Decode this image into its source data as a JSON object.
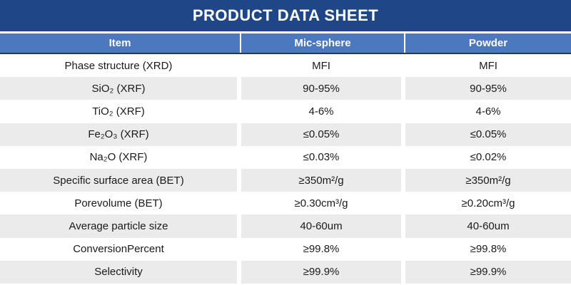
{
  "title": "PRODUCT DATA SHEET",
  "colors": {
    "banner_bg": "#1f4788",
    "header_bg": "#4c78c0",
    "header_border": "#1f3864",
    "row_alt_bg": "#ebebeb",
    "text": "#1a1a1a",
    "header_text": "#ffffff"
  },
  "table": {
    "columns": [
      {
        "label": "Item"
      },
      {
        "label": "Mic-sphere"
      },
      {
        "label": "Powder"
      }
    ],
    "rows": [
      {
        "item": "Phase structure (XRD)",
        "mic_sphere": "MFI",
        "powder": "MFI"
      },
      {
        "item": "SiO₂ (XRF)",
        "mic_sphere": "90-95%",
        "powder": "90-95%"
      },
      {
        "item": "TiO₂ (XRF)",
        "mic_sphere": "4-6%",
        "powder": "4-6%"
      },
      {
        "item": "Fe₂O₃ (XRF)",
        "mic_sphere": "≤0.05%",
        "powder": "≤0.05%"
      },
      {
        "item": "Na₂O (XRF)",
        "mic_sphere": "≤0.03%",
        "powder": "≤0.02%"
      },
      {
        "item": "Specific surface area (BET)",
        "mic_sphere": "≥350m²/g",
        "powder": "≥350m²/g"
      },
      {
        "item": "Porevolume (BET)",
        "mic_sphere": "≥0.30cm³/g",
        "powder": "≥0.20cm³/g"
      },
      {
        "item": "Average particle size",
        "mic_sphere": "40-60um",
        "powder": "40-60um"
      },
      {
        "item": "ConversionPercent",
        "mic_sphere": "≥99.8%",
        "powder": "≥99.8%"
      },
      {
        "item": "Selectivity",
        "mic_sphere": "≥99.9%",
        "powder": "≥99.9%"
      }
    ]
  }
}
